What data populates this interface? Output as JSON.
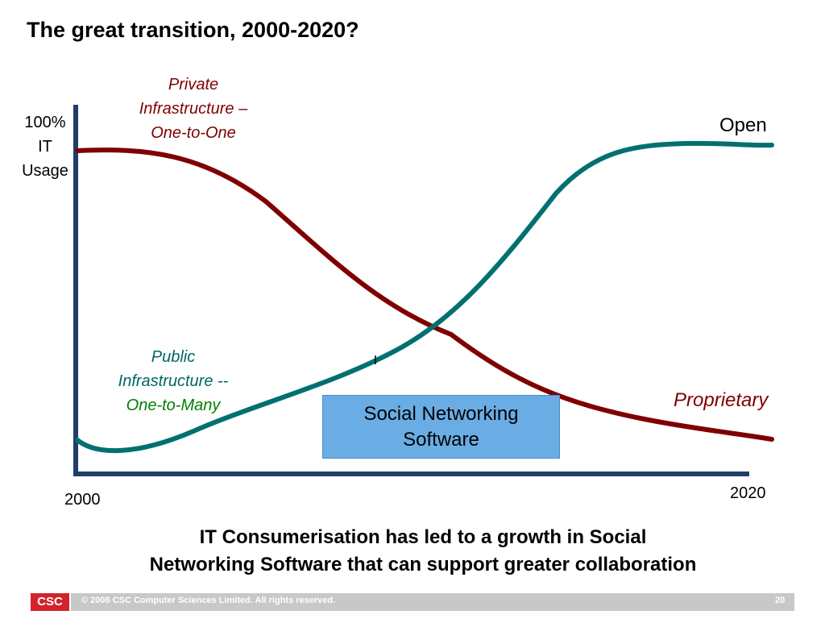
{
  "title": "The great transition, 2000-2020?",
  "diagram": {
    "y_axis_label": [
      "100%",
      "IT",
      "Usage"
    ],
    "x_axis_start": "2000",
    "x_axis_end": "2020",
    "private_label": {
      "line1": "Private",
      "line2_italic": "Infrastructure",
      "line2_dash": " –",
      "line3": "One-to-One"
    },
    "public_label": {
      "line1": "Public",
      "line2": "Infrastructure --",
      "line3": "One-to-Many"
    },
    "open_label": "Open",
    "proprietary_label": "Proprietary",
    "box_text": [
      "Social Networking",
      "Software"
    ],
    "colors": {
      "private_curve": "#7f0000",
      "public_curve": "#007070",
      "axis": "#1f3f6a",
      "box": "#6aace4"
    }
  },
  "caption": [
    "IT Consumerisation has led to a growth in Social",
    "Networking Software that can support greater collaboration"
  ],
  "footer": {
    "logo": "CSC",
    "copyright": "© 2008 CSC Computer Sciences Limited.  All rights reserved.",
    "page_number": "20"
  }
}
